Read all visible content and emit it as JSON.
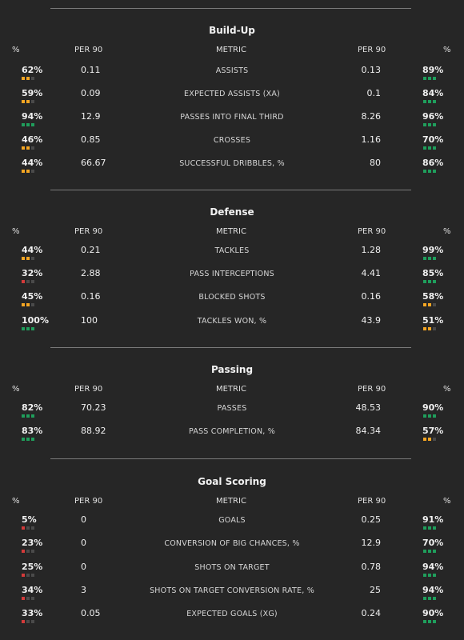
{
  "colors": {
    "background": "#262626",
    "high": "#1f9e5c",
    "mid": "#f5a623",
    "low": "#d33a3a",
    "empty": "#4a4a4a"
  },
  "headers": {
    "pct": "%",
    "per90": "PER 90",
    "metric": "METRIC"
  },
  "sections": [
    {
      "title": "Build-Up",
      "rows": [
        {
          "metric": "ASSISTS",
          "left_pct": "62%",
          "left_val": "0.11",
          "right_val": "0.13",
          "right_pct": "89%"
        },
        {
          "metric": "EXPECTED ASSISTS (XA)",
          "left_pct": "59%",
          "left_val": "0.09",
          "right_val": "0.1",
          "right_pct": "84%"
        },
        {
          "metric": "PASSES INTO FINAL THIRD",
          "left_pct": "94%",
          "left_val": "12.9",
          "right_val": "8.26",
          "right_pct": "96%"
        },
        {
          "metric": "CROSSES",
          "left_pct": "46%",
          "left_val": "0.85",
          "right_val": "1.16",
          "right_pct": "70%"
        },
        {
          "metric": "SUCCESSFUL DRIBBLES, %",
          "left_pct": "44%",
          "left_val": "66.67",
          "right_val": "80",
          "right_pct": "86%"
        }
      ]
    },
    {
      "title": "Defense",
      "rows": [
        {
          "metric": "TACKLES",
          "left_pct": "44%",
          "left_val": "0.21",
          "right_val": "1.28",
          "right_pct": "99%"
        },
        {
          "metric": "PASS INTERCEPTIONS",
          "left_pct": "32%",
          "left_val": "2.88",
          "right_val": "4.41",
          "right_pct": "85%"
        },
        {
          "metric": "BLOCKED SHOTS",
          "left_pct": "45%",
          "left_val": "0.16",
          "right_val": "0.16",
          "right_pct": "58%"
        },
        {
          "metric": "TACKLES WON, %",
          "left_pct": "100%",
          "left_val": "100",
          "right_val": "43.9",
          "right_pct": "51%"
        }
      ]
    },
    {
      "title": "Passing",
      "rows": [
        {
          "metric": "PASSES",
          "left_pct": "82%",
          "left_val": "70.23",
          "right_val": "48.53",
          "right_pct": "90%"
        },
        {
          "metric": "PASS COMPLETION, %",
          "left_pct": "83%",
          "left_val": "88.92",
          "right_val": "84.34",
          "right_pct": "57%"
        }
      ]
    },
    {
      "title": "Goal Scoring",
      "rows": [
        {
          "metric": "GOALS",
          "left_pct": "5%",
          "left_val": "0",
          "right_val": "0.25",
          "right_pct": "91%"
        },
        {
          "metric": "CONVERSION OF BIG CHANCES, %",
          "left_pct": "23%",
          "left_val": "0",
          "right_val": "12.9",
          "right_pct": "70%"
        },
        {
          "metric": "SHOTS ON TARGET",
          "left_pct": "25%",
          "left_val": "0",
          "right_val": "0.78",
          "right_pct": "94%"
        },
        {
          "metric": "SHOTS ON TARGET CONVERSION RATE, %",
          "left_pct": "34%",
          "left_val": "3",
          "right_val": "25",
          "right_pct": "94%"
        },
        {
          "metric": "EXPECTED GOALS (XG)",
          "left_pct": "33%",
          "left_val": "0.05",
          "right_val": "0.24",
          "right_pct": "90%"
        }
      ]
    }
  ]
}
